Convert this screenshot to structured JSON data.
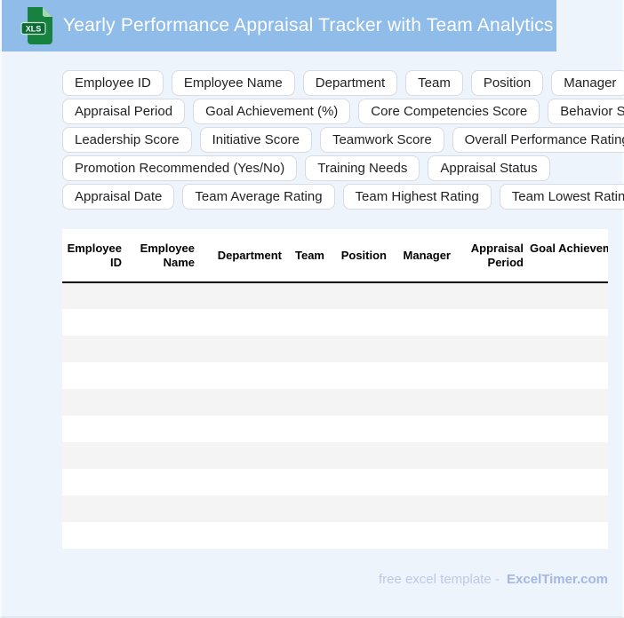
{
  "header": {
    "title": "Yearly Performance Appraisal Tracker with Team Analytics",
    "icon_label": "XLS",
    "bar_color": "#8FBCE9",
    "icon_body_color": "#17813F",
    "icon_fold_color": "#A5D8B2",
    "icon_band_color": "#0C6B34"
  },
  "chips": {
    "rows": [
      [
        "Employee ID",
        "Employee Name",
        "Department",
        "Team",
        "Position",
        "Manager"
      ],
      [
        "Appraisal Period",
        "Goal Achievement (%)",
        "Core Competencies Score",
        "Behavior Score"
      ],
      [
        "Leadership Score",
        "Initiative Score",
        "Teamwork Score",
        "Overall Performance Rating"
      ],
      [
        "Promotion Recommended (Yes/No)",
        "Training Needs",
        "Appraisal Status"
      ],
      [
        "Appraisal Date",
        "Team Average Rating",
        "Team Highest Rating",
        "Team Lowest Rating"
      ]
    ]
  },
  "table": {
    "columns": [
      "Employee ID",
      "Employee Name",
      "Department",
      "Team",
      "Position",
      "Manager",
      "Appraisal Period",
      "Goal Achievement (%)"
    ],
    "empty_row_count": 10,
    "stripe_color": "#F5F4F4"
  },
  "footer": {
    "text": "free excel template -",
    "brand": "ExcelTimer.com"
  }
}
